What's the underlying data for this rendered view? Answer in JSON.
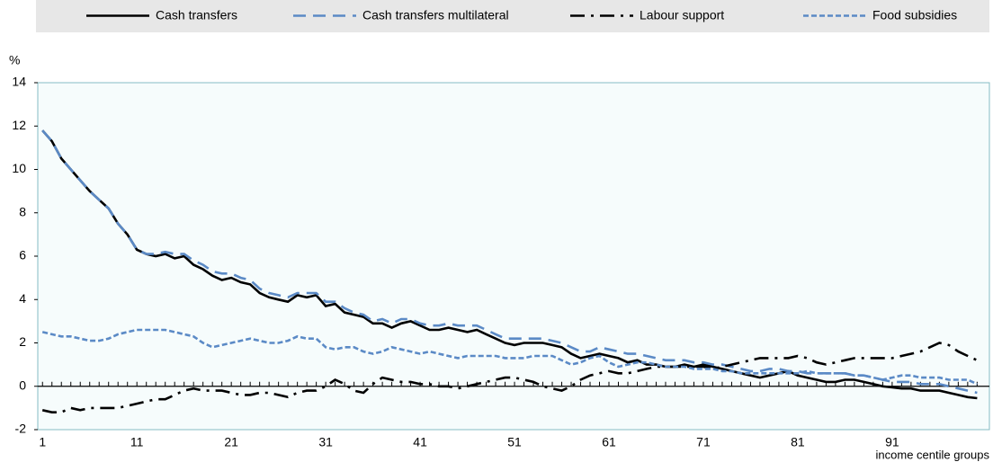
{
  "chart_data": {
    "type": "line",
    "y_label": "%",
    "x_label": "income centile groups",
    "x": [
      1,
      2,
      3,
      4,
      5,
      6,
      7,
      8,
      9,
      10,
      11,
      12,
      13,
      14,
      15,
      16,
      17,
      18,
      19,
      20,
      21,
      22,
      23,
      24,
      25,
      26,
      27,
      28,
      29,
      30,
      31,
      32,
      33,
      34,
      35,
      36,
      37,
      38,
      39,
      40,
      41,
      42,
      43,
      44,
      45,
      46,
      47,
      48,
      49,
      50,
      51,
      52,
      53,
      54,
      55,
      56,
      57,
      58,
      59,
      60,
      61,
      62,
      63,
      64,
      65,
      66,
      67,
      68,
      69,
      70,
      71,
      72,
      73,
      74,
      75,
      76,
      77,
      78,
      79,
      80,
      81,
      82,
      83,
      84,
      85,
      86,
      87,
      88,
      89,
      90,
      91,
      92,
      93,
      94,
      95,
      96,
      97,
      98,
      99,
      100
    ],
    "xlim": [
      0.5,
      101.3
    ],
    "xticks": [
      1,
      11,
      21,
      31,
      41,
      51,
      61,
      71,
      81,
      91
    ],
    "ylim": [
      -2,
      14
    ],
    "yticks": [
      -2,
      0,
      2,
      4,
      6,
      8,
      10,
      12,
      14
    ],
    "series": [
      {
        "name": "Cash transfers",
        "color": "#000000",
        "dash": "solid",
        "values": [
          11.8,
          11.3,
          10.5,
          10.0,
          9.5,
          9.0,
          8.6,
          8.2,
          7.5,
          7.0,
          6.3,
          6.1,
          6.0,
          6.1,
          5.9,
          6.0,
          5.6,
          5.4,
          5.1,
          4.9,
          5.0,
          4.8,
          4.7,
          4.3,
          4.1,
          4.0,
          3.9,
          4.2,
          4.1,
          4.2,
          3.7,
          3.8,
          3.4,
          3.3,
          3.2,
          2.9,
          2.9,
          2.7,
          2.9,
          3.0,
          2.8,
          2.6,
          2.6,
          2.7,
          2.6,
          2.5,
          2.6,
          2.4,
          2.2,
          2.0,
          1.9,
          2.0,
          2.0,
          2.0,
          1.9,
          1.8,
          1.5,
          1.3,
          1.4,
          1.5,
          1.4,
          1.3,
          1.1,
          1.2,
          1.0,
          1.0,
          0.9,
          0.9,
          1.0,
          0.9,
          1.0,
          0.9,
          0.8,
          0.7,
          0.6,
          0.5,
          0.4,
          0.5,
          0.6,
          0.7,
          0.5,
          0.4,
          0.3,
          0.2,
          0.2,
          0.3,
          0.3,
          0.2,
          0.1,
          0.0,
          -0.05,
          -0.1,
          -0.1,
          -0.2,
          -0.2,
          -0.2,
          -0.3,
          -0.4,
          -0.5,
          -0.55
        ]
      },
      {
        "name": "Cash transfers multilateral",
        "color": "#5b8ac6",
        "dash": "dashed",
        "values": [
          11.8,
          11.3,
          10.5,
          10.0,
          9.5,
          9.0,
          8.6,
          8.2,
          7.5,
          7.0,
          6.3,
          6.1,
          6.1,
          6.2,
          6.1,
          6.1,
          5.8,
          5.6,
          5.3,
          5.2,
          5.2,
          5.0,
          4.9,
          4.5,
          4.3,
          4.2,
          4.1,
          4.3,
          4.3,
          4.3,
          3.9,
          3.9,
          3.6,
          3.4,
          3.3,
          3.0,
          3.1,
          2.9,
          3.1,
          3.1,
          2.9,
          2.8,
          2.8,
          2.9,
          2.8,
          2.8,
          2.8,
          2.6,
          2.4,
          2.2,
          2.2,
          2.2,
          2.2,
          2.2,
          2.1,
          2.0,
          1.8,
          1.6,
          1.6,
          1.8,
          1.7,
          1.6,
          1.5,
          1.5,
          1.4,
          1.3,
          1.2,
          1.2,
          1.2,
          1.1,
          1.1,
          1.0,
          1.0,
          0.9,
          0.8,
          0.7,
          0.7,
          0.8,
          0.8,
          0.7,
          0.7,
          0.6,
          0.6,
          0.6,
          0.6,
          0.6,
          0.5,
          0.5,
          0.4,
          0.3,
          0.2,
          0.2,
          0.2,
          0.1,
          0.1,
          0.1,
          0.0,
          -0.1,
          -0.2,
          -0.3
        ]
      },
      {
        "name": "Labour support",
        "color": "#000000",
        "dash": "dashdot",
        "values": [
          -1.1,
          -1.2,
          -1.2,
          -1.0,
          -1.1,
          -1.0,
          -1.0,
          -1.0,
          -1.0,
          -0.9,
          -0.8,
          -0.7,
          -0.6,
          -0.6,
          -0.4,
          -0.2,
          -0.1,
          -0.2,
          -0.2,
          -0.2,
          -0.3,
          -0.4,
          -0.4,
          -0.3,
          -0.3,
          -0.4,
          -0.5,
          -0.3,
          -0.2,
          -0.2,
          0.0,
          0.3,
          0.1,
          -0.2,
          -0.3,
          0.1,
          0.4,
          0.3,
          0.2,
          0.2,
          0.1,
          0.1,
          0.0,
          0.0,
          -0.1,
          0.0,
          0.1,
          0.2,
          0.3,
          0.4,
          0.4,
          0.3,
          0.2,
          0.0,
          -0.1,
          -0.2,
          0.0,
          0.3,
          0.5,
          0.6,
          0.7,
          0.6,
          0.6,
          0.7,
          0.8,
          0.9,
          0.9,
          0.9,
          0.9,
          0.9,
          0.9,
          0.8,
          0.9,
          1.0,
          1.1,
          1.2,
          1.3,
          1.3,
          1.3,
          1.3,
          1.4,
          1.3,
          1.1,
          1.0,
          1.1,
          1.2,
          1.3,
          1.3,
          1.3,
          1.3,
          1.3,
          1.4,
          1.5,
          1.6,
          1.8,
          2.0,
          1.9,
          1.6,
          1.4,
          1.2
        ]
      },
      {
        "name": "Food subsidies",
        "color": "#5b8ac6",
        "dash": "dotted",
        "values": [
          2.5,
          2.4,
          2.3,
          2.3,
          2.2,
          2.1,
          2.1,
          2.2,
          2.4,
          2.5,
          2.6,
          2.6,
          2.6,
          2.6,
          2.5,
          2.4,
          2.3,
          2.0,
          1.8,
          1.9,
          2.0,
          2.1,
          2.2,
          2.1,
          2.0,
          2.0,
          2.1,
          2.3,
          2.2,
          2.2,
          1.8,
          1.7,
          1.8,
          1.8,
          1.6,
          1.5,
          1.6,
          1.8,
          1.7,
          1.6,
          1.5,
          1.6,
          1.5,
          1.4,
          1.3,
          1.4,
          1.4,
          1.4,
          1.4,
          1.3,
          1.3,
          1.3,
          1.4,
          1.4,
          1.4,
          1.2,
          1.0,
          1.1,
          1.3,
          1.4,
          1.1,
          0.9,
          1.0,
          1.1,
          1.1,
          1.0,
          0.9,
          0.9,
          0.9,
          0.8,
          0.8,
          0.8,
          0.7,
          0.7,
          0.6,
          0.6,
          0.6,
          0.6,
          0.6,
          0.6,
          0.6,
          0.7,
          0.6,
          0.6,
          0.6,
          0.6,
          0.5,
          0.5,
          0.4,
          0.3,
          0.4,
          0.5,
          0.5,
          0.4,
          0.4,
          0.4,
          0.3,
          0.3,
          0.3,
          0.1
        ]
      }
    ]
  }
}
